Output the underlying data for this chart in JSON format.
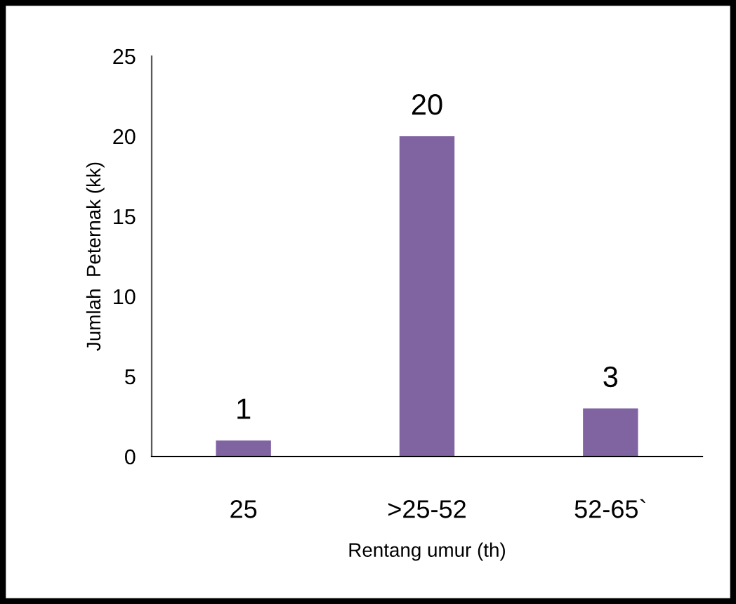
{
  "chart_data": {
    "type": "bar",
    "xlabel": "Rentang umur (th)",
    "ylabel": "Jumlah  Peternak (kk)",
    "categories": [
      "25",
      ">25-52",
      "52-65`"
    ],
    "values": [
      1,
      20,
      3
    ],
    "color": "#8064a2",
    "ylim": [
      0,
      25
    ],
    "yticks": [
      0,
      5,
      10,
      15,
      20,
      25
    ],
    "grid": false,
    "data_labels": true
  }
}
